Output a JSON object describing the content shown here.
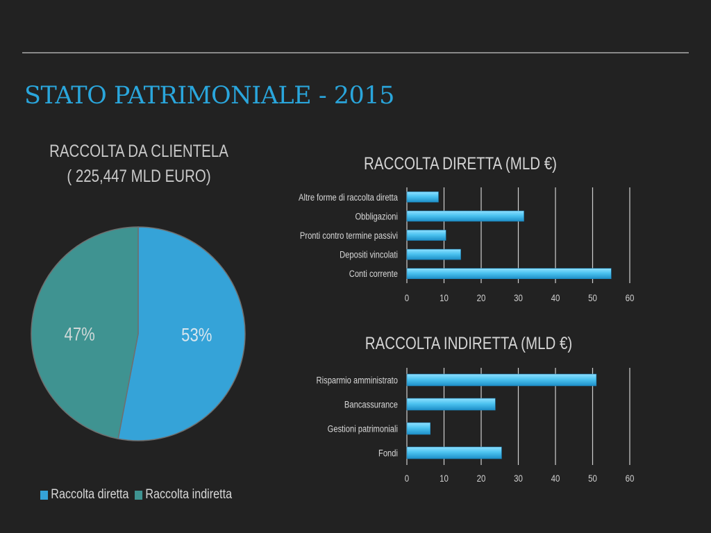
{
  "slide": {
    "title": "STATO PATRIMONIALE - 2015"
  },
  "colors": {
    "background": "#222222",
    "title": "#2aa6dc",
    "pie_diretta": "#35a3d8",
    "pie_indiretta": "#3f9391",
    "bar": "#47c1ee",
    "grid": "#d0d0d0"
  },
  "pie_title_lines": [
    "RACCOLTA DA CLIENTELA",
    "( 225,447 MLD EURO)"
  ],
  "chart_data": [
    {
      "type": "pie",
      "title": "RACCOLTA DA CLIENTELA ( 225,447 MLD EURO)",
      "categories": [
        "Raccolta diretta",
        "Raccolta indiretta"
      ],
      "values": [
        53,
        47
      ],
      "labels": [
        "53%",
        "47%"
      ],
      "legend": "bottom-left"
    },
    {
      "type": "bar",
      "orientation": "horizontal",
      "title": "RACCOLTA DIRETTA (MLD €)",
      "categories": [
        "Conti corrente",
        "Depositi vincolati",
        "Pronti contro termine passivi",
        "Obbligazioni",
        "Altre forme di raccolta diretta"
      ],
      "values": [
        55,
        14.5,
        10.5,
        31.5,
        8.5
      ],
      "xlim": [
        0,
        60
      ],
      "xticks": [
        "0",
        "10",
        "20",
        "30",
        "40",
        "50",
        "60"
      ],
      "grid": true
    },
    {
      "type": "bar",
      "orientation": "horizontal",
      "title": "RACCOLTA INDIRETTA (MLD €)",
      "categories": [
        "Fondi",
        "Gestioni patrimoniali",
        "Bancassurance",
        "Risparmio amministrato"
      ],
      "values": [
        25.5,
        6.3,
        23.8,
        51
      ],
      "xlim": [
        0,
        60
      ],
      "xticks": [
        "0",
        "10",
        "20",
        "30",
        "40",
        "50",
        "60"
      ],
      "grid": true
    }
  ]
}
